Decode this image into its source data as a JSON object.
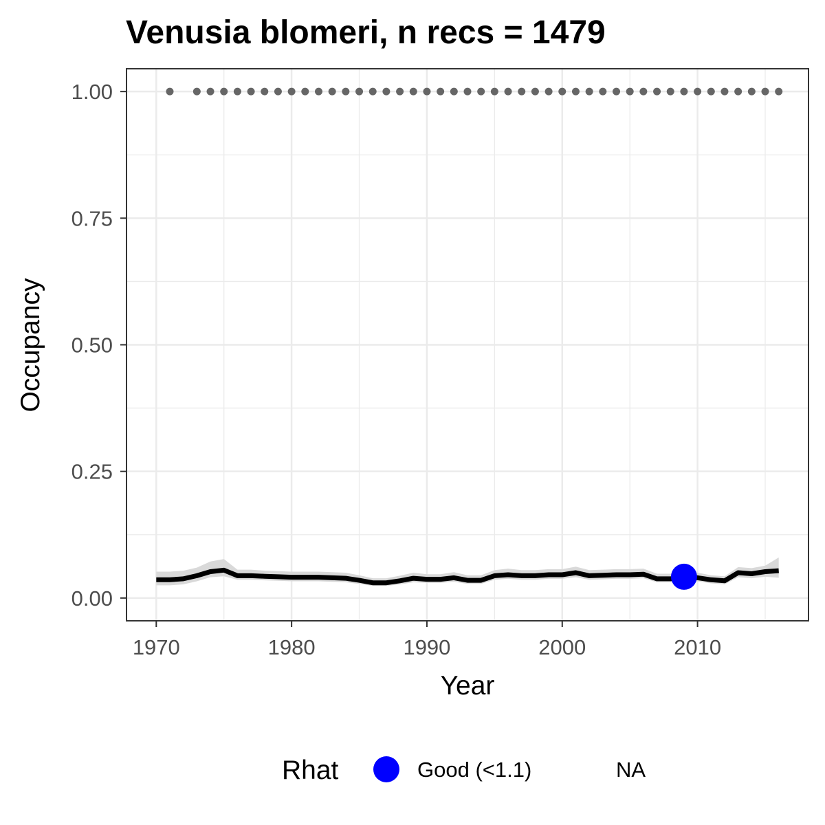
{
  "chart_data": {
    "type": "line",
    "title": "Venusia blomeri, n recs = 1479",
    "xlabel": "Year",
    "ylabel": "Occupancy",
    "xlim": [
      1967.8,
      2018.2
    ],
    "ylim": [
      -0.045,
      1.045
    ],
    "x_ticks": [
      1970,
      1980,
      1990,
      2000,
      2010
    ],
    "y_ticks": [
      0.0,
      0.25,
      0.5,
      0.75,
      1.0
    ],
    "y_tick_labels": [
      "0.00",
      "0.25",
      "0.50",
      "0.75",
      "1.00"
    ],
    "grid": true,
    "legend_position": "bottom",
    "series": [
      {
        "x": [
          1970,
          1971,
          1972,
          1973,
          1974,
          1975,
          1976,
          1977,
          1978,
          1979,
          1980,
          1981,
          1982,
          1983,
          1984,
          1985,
          1986,
          1987,
          1988,
          1989,
          1990,
          1991,
          1992,
          1993,
          1994,
          1995,
          1996,
          1997,
          1998,
          1999,
          2000,
          2001,
          2002,
          2003,
          2004,
          2005,
          2006,
          2007,
          2008,
          2009,
          2010,
          2011,
          2012,
          2013,
          2014,
          2015,
          2016
        ],
        "y": [
          0.036,
          0.036,
          0.038,
          0.044,
          0.052,
          0.055,
          0.044,
          0.044,
          0.043,
          0.042,
          0.041,
          0.041,
          0.041,
          0.04,
          0.039,
          0.035,
          0.03,
          0.03,
          0.034,
          0.039,
          0.037,
          0.037,
          0.04,
          0.035,
          0.035,
          0.044,
          0.046,
          0.044,
          0.044,
          0.046,
          0.046,
          0.05,
          0.044,
          0.045,
          0.046,
          0.046,
          0.047,
          0.038,
          0.038,
          0.042,
          0.04,
          0.036,
          0.034,
          0.05,
          0.048,
          0.052,
          0.054
        ],
        "lower": [
          0.025,
          0.025,
          0.027,
          0.033,
          0.041,
          0.043,
          0.036,
          0.036,
          0.035,
          0.034,
          0.033,
          0.033,
          0.033,
          0.032,
          0.031,
          0.028,
          0.024,
          0.024,
          0.027,
          0.031,
          0.03,
          0.03,
          0.032,
          0.028,
          0.028,
          0.036,
          0.038,
          0.036,
          0.036,
          0.038,
          0.038,
          0.041,
          0.036,
          0.037,
          0.038,
          0.038,
          0.039,
          0.031,
          0.031,
          0.034,
          0.033,
          0.029,
          0.027,
          0.041,
          0.039,
          0.042,
          0.04
        ],
        "upper": [
          0.052,
          0.052,
          0.054,
          0.06,
          0.072,
          0.077,
          0.056,
          0.056,
          0.054,
          0.053,
          0.052,
          0.052,
          0.052,
          0.051,
          0.05,
          0.045,
          0.039,
          0.039,
          0.044,
          0.05,
          0.047,
          0.047,
          0.051,
          0.045,
          0.045,
          0.055,
          0.058,
          0.055,
          0.055,
          0.057,
          0.057,
          0.062,
          0.055,
          0.056,
          0.057,
          0.057,
          0.058,
          0.048,
          0.048,
          0.053,
          0.05,
          0.045,
          0.043,
          0.061,
          0.059,
          0.064,
          0.08
        ]
      }
    ],
    "rhat_points": [
      {
        "x": 2009,
        "y": 0.042,
        "category": "Good (<1.1)"
      }
    ],
    "record_years": {
      "x": [
        1971,
        1973,
        1974,
        1975,
        1976,
        1977,
        1978,
        1979,
        1980,
        1981,
        1982,
        1983,
        1984,
        1985,
        1986,
        1987,
        1988,
        1989,
        1990,
        1991,
        1992,
        1993,
        1994,
        1995,
        1996,
        1997,
        1998,
        1999,
        2000,
        2001,
        2002,
        2003,
        2004,
        2005,
        2006,
        2007,
        2008,
        2009,
        2010,
        2011,
        2012,
        2013,
        2014,
        2015,
        2016
      ],
      "y": 1.0
    },
    "legend": {
      "title": "Rhat",
      "entries": [
        {
          "label": "Good (<1.1)",
          "color": "#0000ff"
        },
        {
          "label": "NA",
          "color": null
        }
      ]
    },
    "colors": {
      "line": "#000000",
      "ribbon": "#d9d9d9",
      "record_points": "#666666",
      "rhat_good": "#0000ff",
      "grid": "#ebebeb",
      "panel_border": "#333333"
    }
  }
}
